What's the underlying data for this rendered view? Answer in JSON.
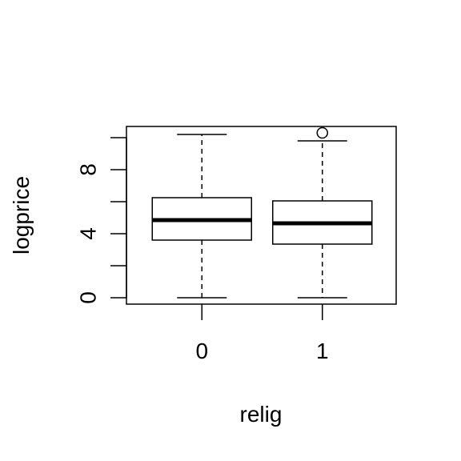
{
  "chart_data": {
    "type": "boxplot",
    "title": "",
    "xlabel": "relig",
    "ylabel": "logprice",
    "categories": [
      "0",
      "1"
    ],
    "ylim": [
      -0.4,
      10.7
    ],
    "y_ticks": [
      0,
      2,
      4,
      6,
      8,
      10
    ],
    "y_tick_labels": [
      "0",
      "",
      "4",
      "",
      "8",
      ""
    ],
    "grid": false,
    "boxes": [
      {
        "category": "0",
        "whisker_low": 0.0,
        "q1": 3.6,
        "median": 4.85,
        "q3": 6.25,
        "whisker_high": 10.2,
        "outliers": []
      },
      {
        "category": "1",
        "whisker_low": 0.0,
        "q1": 3.35,
        "median": 4.65,
        "q3": 6.05,
        "whisker_high": 9.8,
        "outliers": [
          10.3
        ]
      }
    ]
  }
}
